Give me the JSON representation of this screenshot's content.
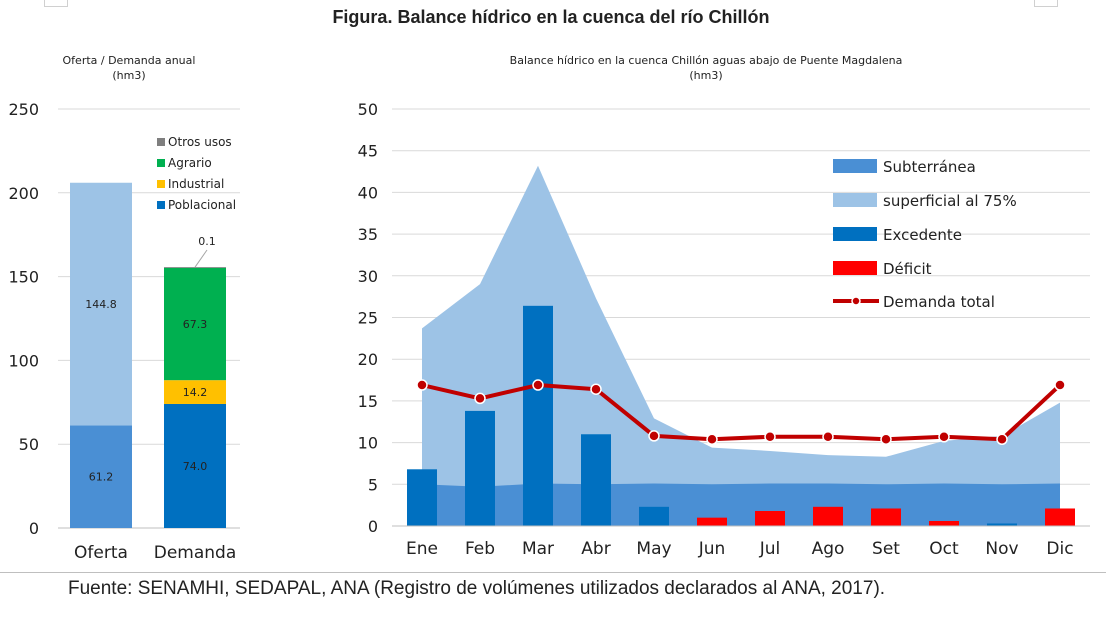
{
  "figure_title": "Figura. Balance hídrico en la cuenca del río Chillón",
  "source_note": "Fuente: SENAMHI, SEDAPAL, ANA (Registro de volúmenes utilizados declarados al ANA, 2017).",
  "chart_data": [
    {
      "type": "bar",
      "stacked": true,
      "title": "Oferta / Demanda anual",
      "subtitle": "(hm3)",
      "categories": [
        "Oferta",
        "Demanda"
      ],
      "ylim": [
        0,
        250
      ],
      "yticks": [
        "0",
        "50",
        "100",
        "150",
        "200",
        "250"
      ],
      "grid": true,
      "legend_position": "top-right",
      "series": [
        {
          "name": "Poblacional",
          "color": "#0070c0",
          "values": [
            null,
            74.0
          ],
          "labels": [
            "",
            "74.0"
          ]
        },
        {
          "name": "Industrial",
          "color": "#ffc000",
          "values": [
            null,
            14.2
          ],
          "labels": [
            "",
            "14.2"
          ]
        },
        {
          "name": "Agrario",
          "color": "#00b050",
          "values": [
            null,
            67.3
          ],
          "labels": [
            "",
            "67.3"
          ]
        },
        {
          "name": "Otros usos",
          "color": "#7f7f7f",
          "values": [
            null,
            0.1
          ],
          "labels": [
            "",
            "0.1"
          ]
        },
        {
          "name": "",
          "color": "#4a8fd4",
          "values": [
            61.2,
            null
          ],
          "labels": [
            "61.2",
            ""
          ]
        },
        {
          "name": "",
          "color": "#9dc3e6",
          "values": [
            144.8,
            null
          ],
          "labels": [
            "144.8",
            ""
          ]
        }
      ]
    },
    {
      "type": "area",
      "title": "Balance hídrico en la cuenca Chillón aguas abajo de Puente Magdalena",
      "subtitle": "(hm3)",
      "categories": [
        "Ene",
        "Feb",
        "Mar",
        "Abr",
        "May",
        "Jun",
        "Jul",
        "Ago",
        "Set",
        "Oct",
        "Nov",
        "Dic"
      ],
      "ylim": [
        0,
        50
      ],
      "yticks": [
        "0",
        "5",
        "10",
        "15",
        "20",
        "25",
        "30",
        "35",
        "40",
        "45",
        "50"
      ],
      "grid": true,
      "legend_position": "top-right",
      "series": [
        {
          "name": "Subterránea",
          "kind": "area",
          "color": "#4a8fd4",
          "values": [
            5.0,
            4.7,
            5.1,
            5.0,
            5.1,
            5.0,
            5.1,
            5.1,
            5.0,
            5.1,
            5.0,
            5.1
          ]
        },
        {
          "name": "superficial al 75%",
          "kind": "area",
          "color": "#9dc3e6",
          "values": [
            23.7,
            29.0,
            43.2,
            27.3,
            12.9,
            9.4,
            9.0,
            8.5,
            8.3,
            10.2,
            10.8,
            14.8
          ]
        },
        {
          "name": "Excedente",
          "kind": "bar",
          "color": "#0070c0",
          "values": [
            6.8,
            13.8,
            26.4,
            11.0,
            2.3,
            0,
            0,
            0,
            0,
            0,
            0.3,
            0
          ]
        },
        {
          "name": "Déficit",
          "kind": "bar",
          "color": "#ff0000",
          "values": [
            0,
            0,
            0,
            0,
            0,
            1.0,
            1.8,
            2.3,
            2.1,
            0.6,
            0,
            2.1
          ]
        },
        {
          "name": "Demanda total",
          "kind": "line",
          "color": "#c00000",
          "values": [
            16.9,
            15.3,
            16.9,
            16.4,
            10.8,
            10.4,
            10.7,
            10.7,
            10.4,
            10.7,
            10.4,
            16.9
          ]
        }
      ]
    }
  ]
}
